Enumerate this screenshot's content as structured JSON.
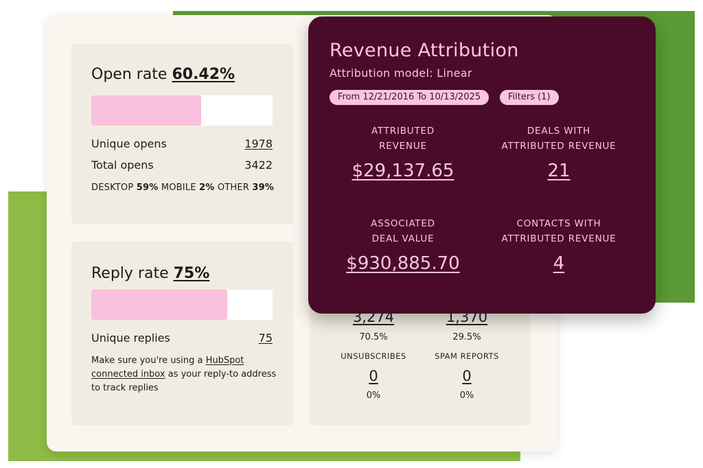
{
  "open_rate": {
    "title": "Open rate",
    "value": "60.42%",
    "fill_fraction": 0.6042,
    "rows": [
      {
        "label": "Unique opens",
        "value": "1978"
      },
      {
        "label": "Total opens",
        "value": "3422"
      }
    ],
    "devices": [
      {
        "label": "DESKTOP",
        "value": "59%"
      },
      {
        "label": "MOBILE",
        "value": "2%"
      },
      {
        "label": "OTHER",
        "value": "39%"
      }
    ]
  },
  "reply_rate": {
    "title": "Reply rate",
    "value": "75%",
    "fill_fraction": 0.75,
    "row": {
      "label": "Unique replies",
      "value": "75"
    },
    "note": {
      "pre": "Make  sure you're using a ",
      "link": "HubSpot connected inbox",
      "post": " as your reply-to address to track replies"
    }
  },
  "stats": {
    "col1": {
      "value": "3,274",
      "pct": "70.5%",
      "label": "UNSUBSCRIBES",
      "value2": "0",
      "pct2": "0%"
    },
    "col2": {
      "value": "1,370",
      "pct": "29.5%",
      "label": "SPAM REPORTS",
      "value2": "0",
      "pct2": "0%"
    }
  },
  "attribution": {
    "title": "Revenue Attribution",
    "model": "Attribution model: Linear",
    "date_range": "From 12/21/2016 To 10/13/2025",
    "filters": "Filters (1)",
    "kpis": [
      {
        "label_1": "ATTRIBUTED",
        "label_2": "REVENUE",
        "value": "$29,137.65"
      },
      {
        "label_1": "DEALS WITH",
        "label_2": "ATTRIBUTED REVENUE",
        "value": "21"
      },
      {
        "label_1": "ASSOCIATED",
        "label_2": "DEAL VALUE",
        "value": "$930,885.70"
      },
      {
        "label_1": "CONTACTS WITH",
        "label_2": "ATTRIBUTED REVENUE",
        "value": "4"
      }
    ]
  },
  "colors": {
    "accent_dark_green": "#5b9a35",
    "accent_light_green": "#8dbb45",
    "plum": "#4a0a2a",
    "pink": "#f8c5de"
  }
}
